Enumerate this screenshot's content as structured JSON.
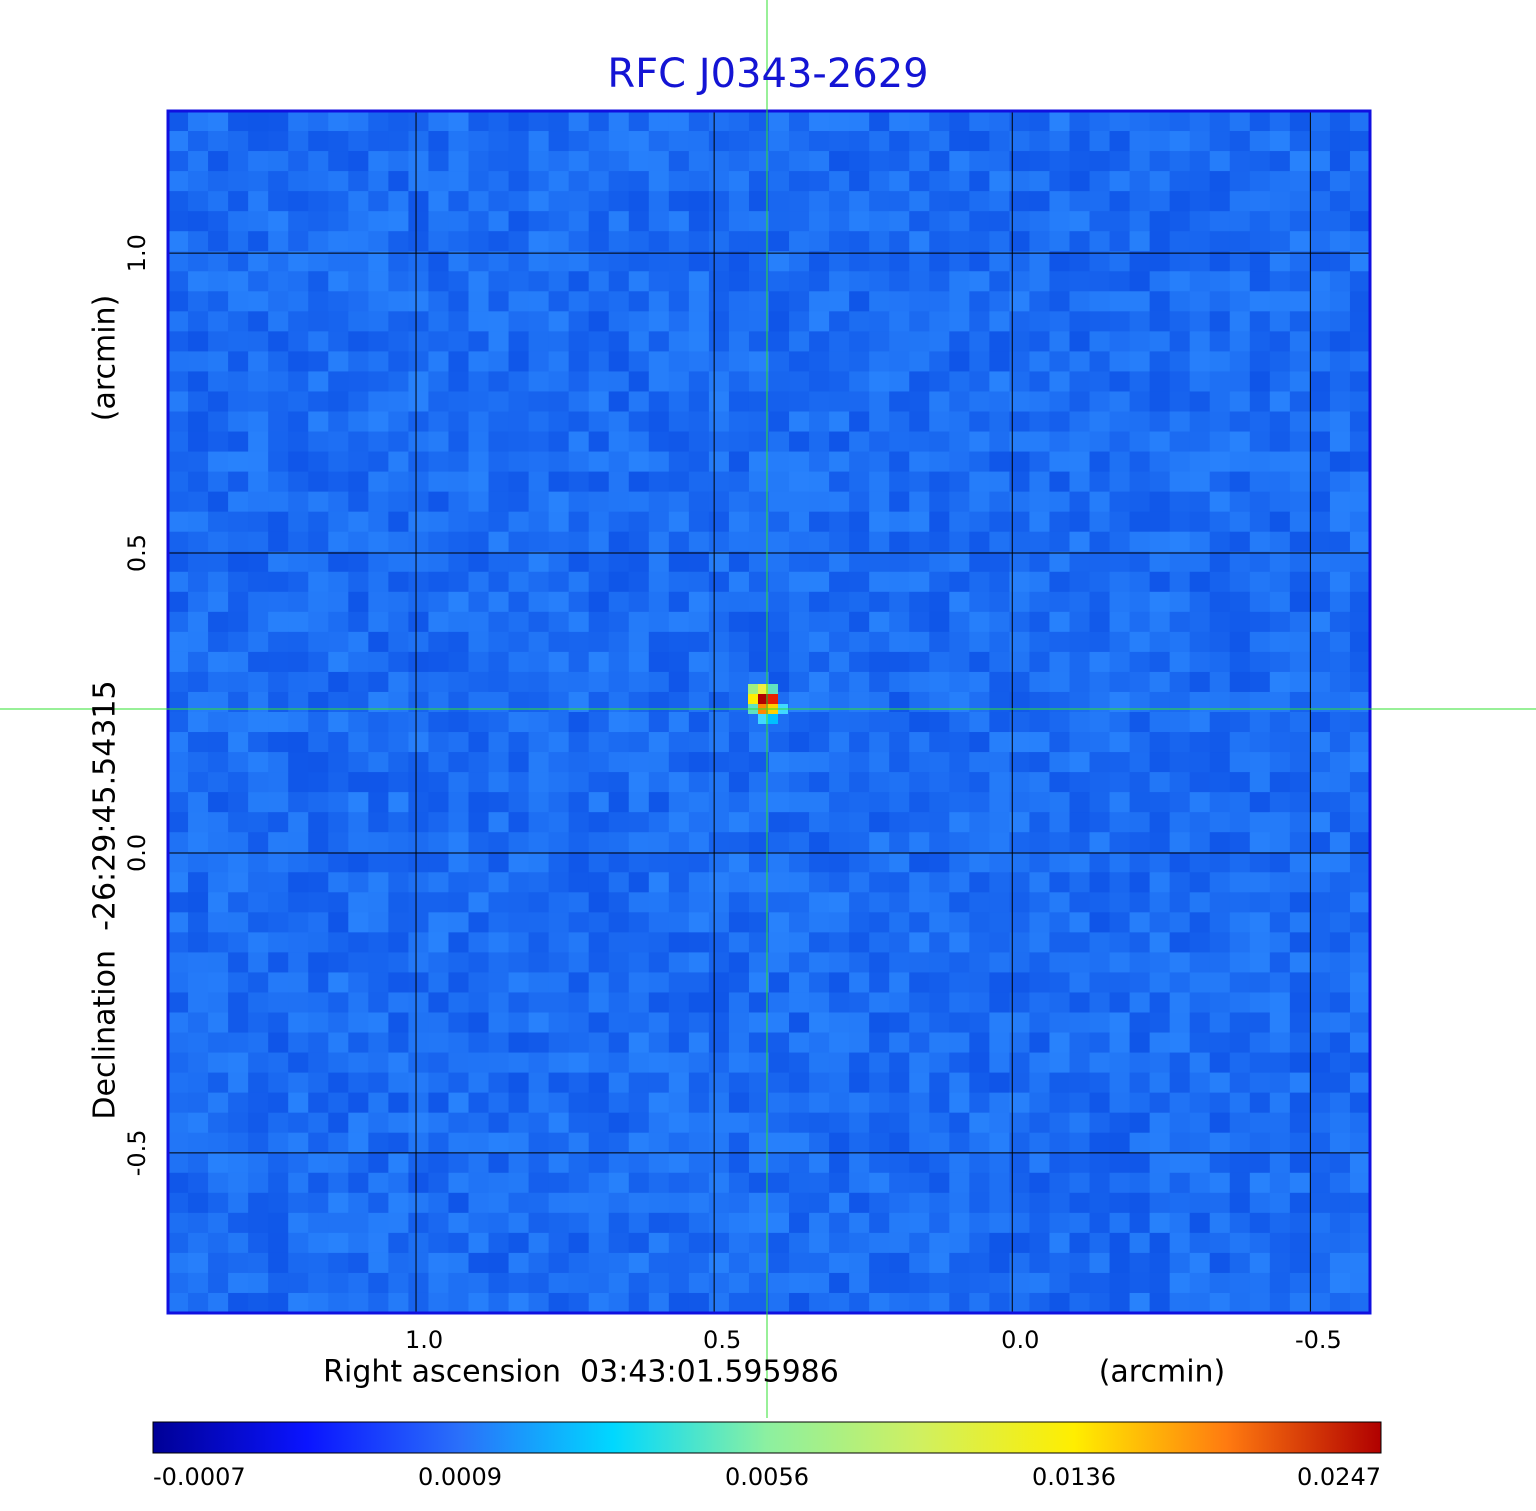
{
  "chart_data": {
    "type": "image",
    "title": "RFC J0343-2629",
    "x_label": "Right ascension  03:43:01.595986",
    "x_unit": "(arcmin)",
    "y_label": "Declination  -26:29:45.54315",
    "y_unit": "(arcmin)",
    "xlim": [
      1.416,
      -0.6
    ],
    "ylim": [
      -0.767,
      1.237
    ],
    "xticks": [
      {
        "value": 1.0,
        "label": "1.0"
      },
      0.5,
      {
        "value": 0.0,
        "label": "0.0"
      },
      -0.5
    ],
    "yticks": [
      -0.5,
      {
        "value": 0.0,
        "label": "0.0"
      },
      0.5,
      {
        "value": 1.0,
        "label": "1.0"
      }
    ],
    "grid": true,
    "colorbar": {
      "ticks": [
        -0.0007,
        0.0009,
        0.0056,
        0.0136,
        0.0247
      ],
      "colors": [
        "#000096",
        "#0a14ff",
        "#2a70fa",
        "#00d8ff",
        "#8cf0a0",
        "#d0f060",
        "#ffee00",
        "#ff7a10",
        "#b00000"
      ]
    }
  }
}
